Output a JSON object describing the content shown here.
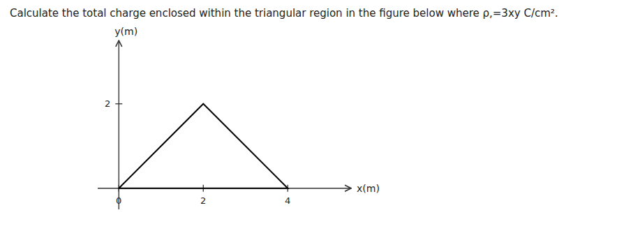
{
  "chart_data": {
    "type": "line",
    "title": "Calculate the total charge enclosed within the triangular region in the figure below where ρ,=3xy C/cm².",
    "x": [
      0,
      2,
      4,
      0
    ],
    "series": [
      {
        "values": [
          0,
          2,
          0,
          0
        ],
        "color": "#000000"
      }
    ],
    "xlabel": "x(m)",
    "ylabel": "y(m)",
    "xlim": [
      -0.5,
      5.5
    ],
    "ylim": [
      -0.5,
      3.5
    ],
    "xticks": [
      0,
      2,
      4
    ],
    "yticks": [
      2
    ],
    "grid": false
  }
}
